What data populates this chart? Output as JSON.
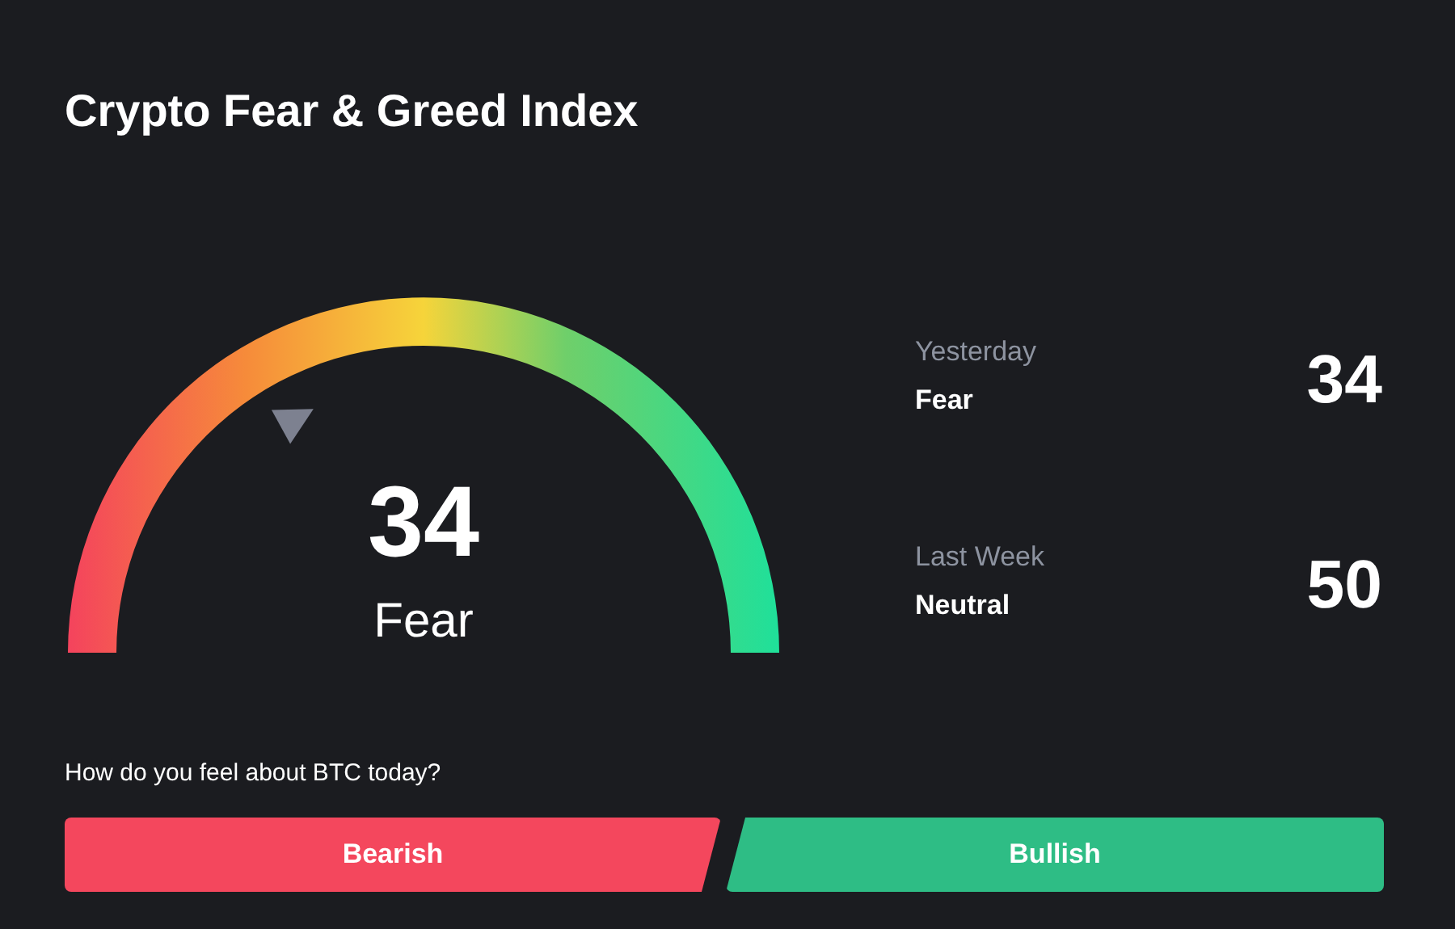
{
  "chart_data": {
    "type": "other",
    "title": "Crypto Fear & Greed Index",
    "categories": [
      null,
      "Yesterday",
      "Last Week"
    ],
    "values": [
      34,
      34,
      50
    ],
    "data_labels": true,
    "annotations": [
      "Fear",
      "Fear",
      "Neutral",
      "How do you feel about BTC today?",
      "Bearish",
      "Bullish"
    ]
  }
}
